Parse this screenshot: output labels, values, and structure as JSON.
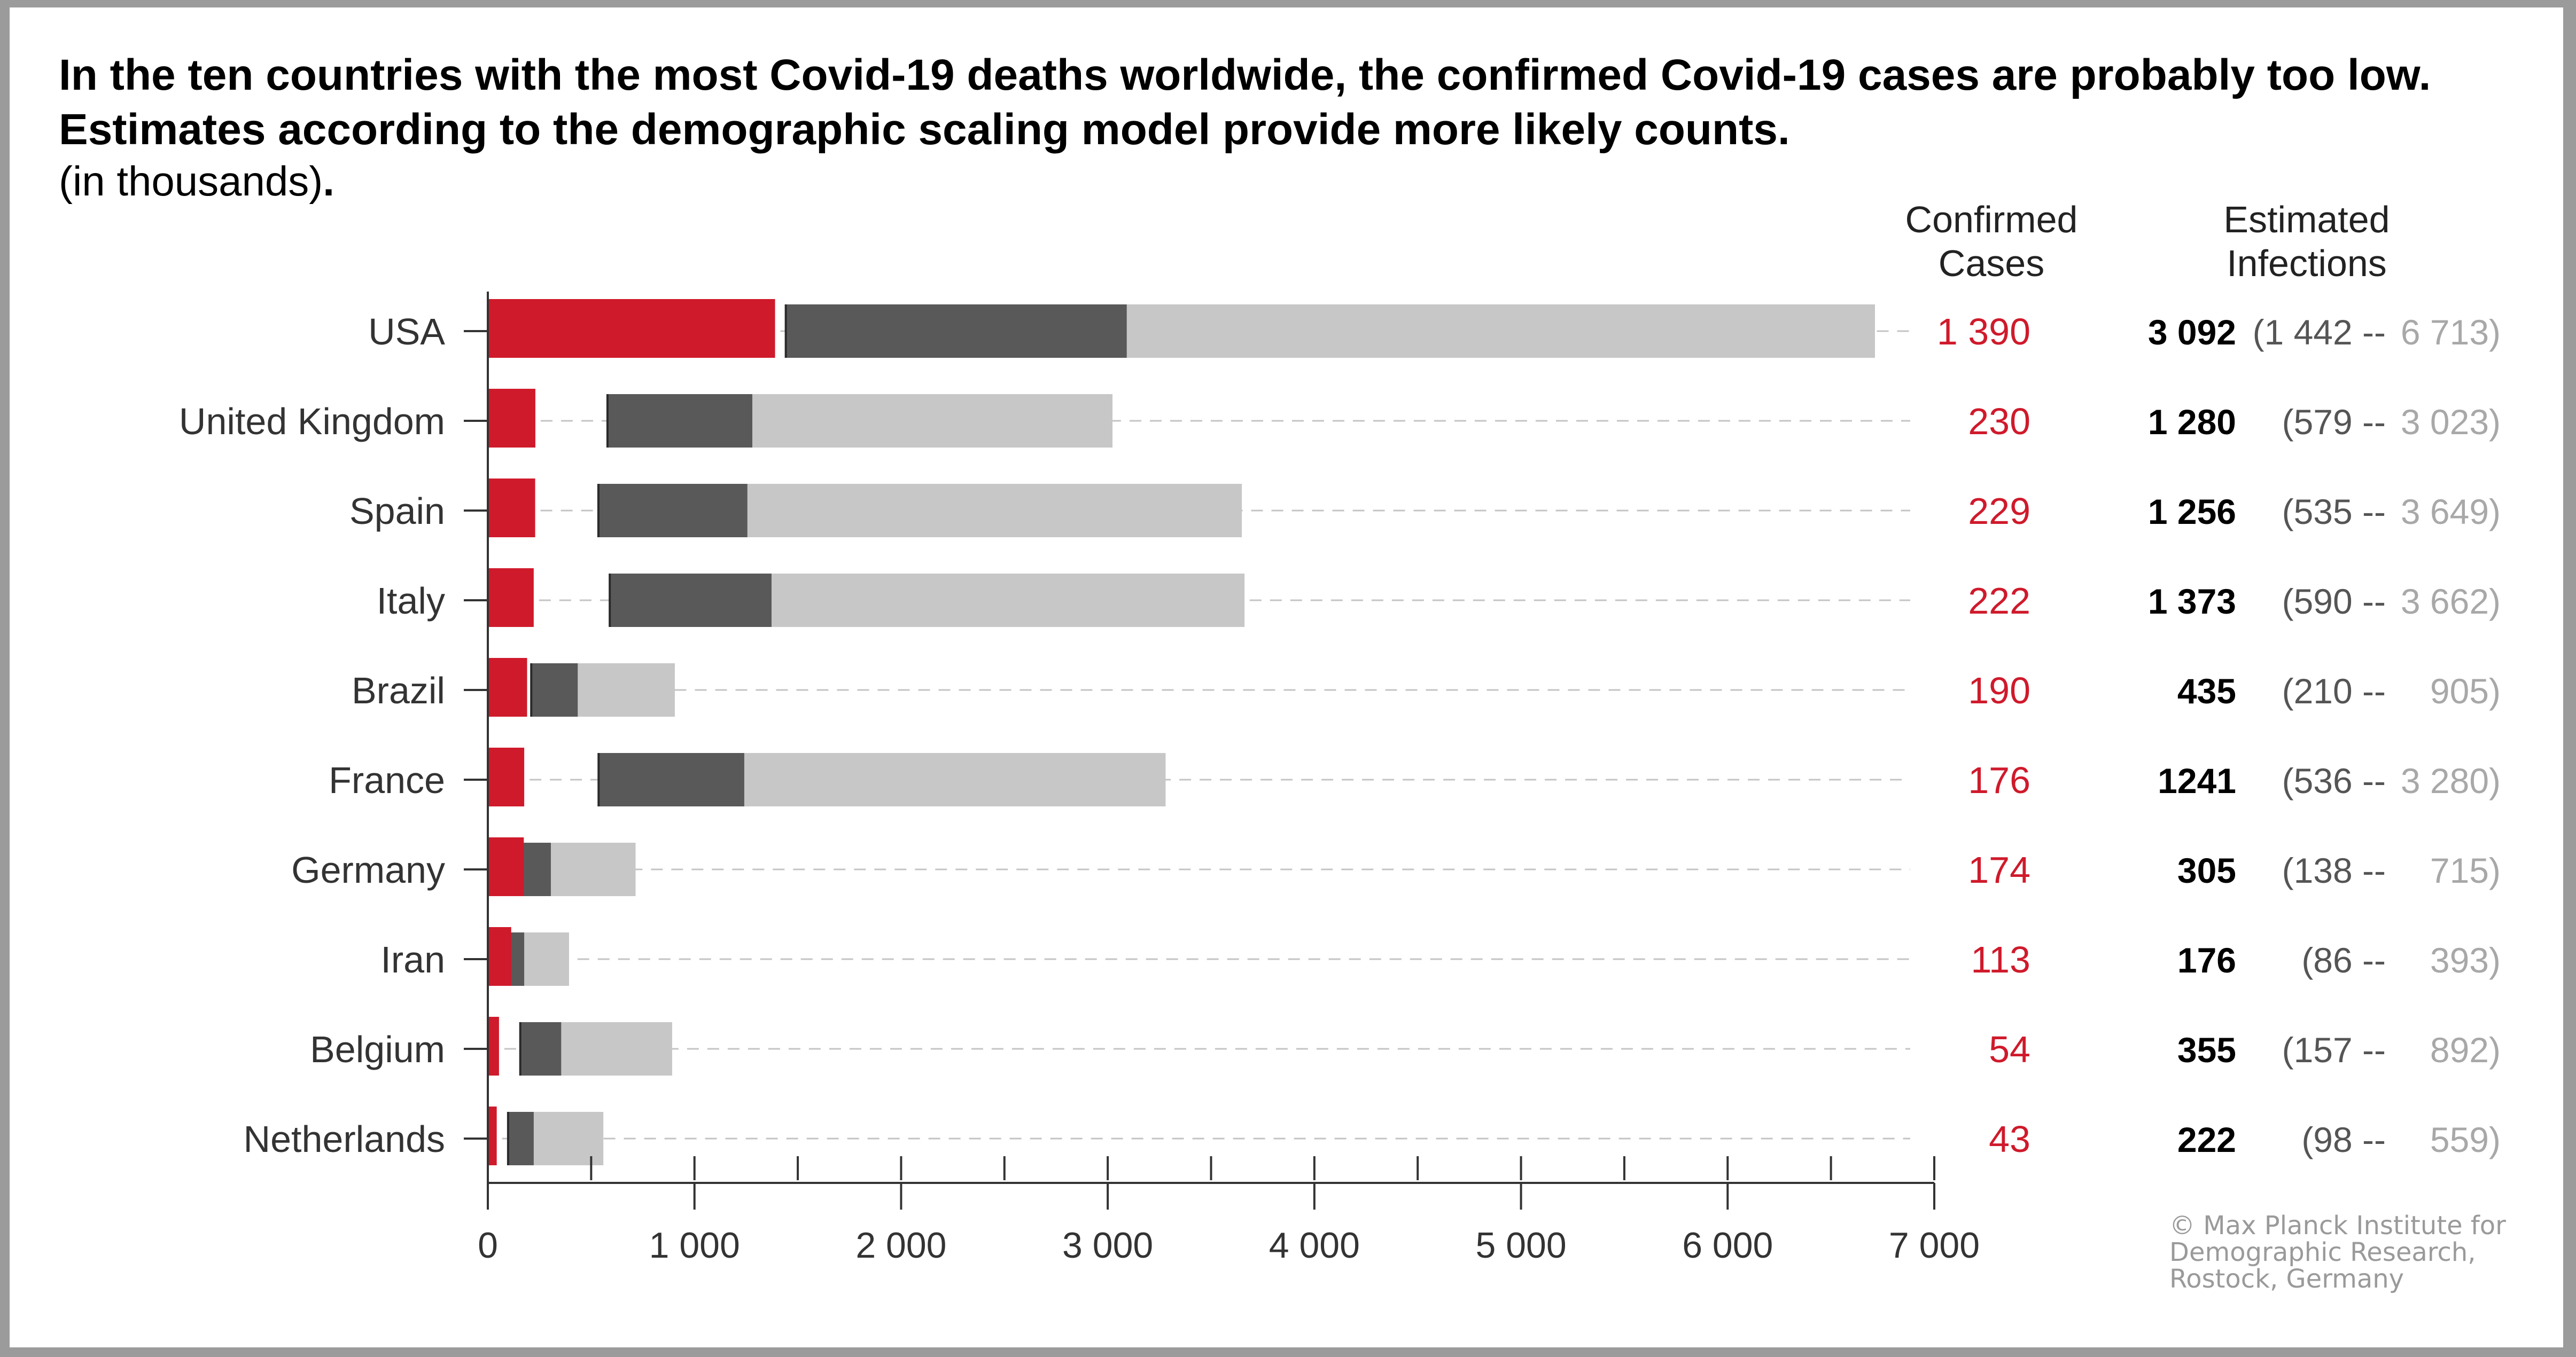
{
  "title": "In the ten countries with the most Covid-19 deaths worldwide, the confirmed Covid-19 cases are probably too low. Estimates according to the demographic scaling model provide more likely counts.",
  "subtitle_text": "(in thousands)",
  "subtitle_dot": ".",
  "column_headers": {
    "confirmed": [
      "Confirmed",
      "Cases"
    ],
    "estimated": [
      "Estimated",
      "Infections"
    ]
  },
  "credit": [
    "© Max Planck Institute for",
    "Demographic Research,",
    "Rostock, Germany"
  ],
  "colors": {
    "confirmed": "#cf1a2b",
    "estimate_low": "#595959",
    "estimate_high": "#c6c7c6",
    "text_confirmed": "#cf1a2b",
    "text_range_high": "#a8a8a8"
  },
  "chart_data": {
    "type": "bar",
    "orientation": "horizontal",
    "xlim": [
      0,
      7000
    ],
    "x_ticks": [
      0,
      1000,
      2000,
      3000,
      4000,
      5000,
      6000,
      7000
    ],
    "x_tick_labels": [
      "0",
      "1 000",
      "2 000",
      "3 000",
      "4 000",
      "5 000",
      "6 000",
      "7 000"
    ],
    "categories": [
      "USA",
      "United Kingdom",
      "Spain",
      "Italy",
      "Brazil",
      "France",
      "Germany",
      "Iran",
      "Belgium",
      "Netherlands"
    ],
    "confirmed": [
      1390,
      230,
      229,
      222,
      190,
      176,
      174,
      113,
      54,
      43
    ],
    "estimated": [
      3092,
      1280,
      1256,
      1373,
      435,
      1241,
      305,
      176,
      355,
      222
    ],
    "range_low": [
      1442,
      579,
      535,
      590,
      210,
      536,
      138,
      86,
      157,
      98
    ],
    "range_high": [
      6713,
      3023,
      3649,
      3662,
      905,
      3280,
      715,
      393,
      892,
      559
    ],
    "confirmed_labels": [
      "1 390",
      "230",
      "229",
      "222",
      "190",
      "176",
      "174",
      "113",
      "54",
      "43"
    ],
    "estimated_labels": [
      "3 092",
      "1 280",
      "1 256",
      "1 373",
      "435",
      "1241",
      "305",
      "176",
      "355",
      "222"
    ],
    "range_low_labels": [
      "(1 442 --",
      "(579 --",
      "(535 --",
      "(590 --",
      "(210 --",
      "(536 --",
      "(138 --",
      "(86 --",
      "(157 --",
      "(98 --"
    ],
    "range_high_labels": [
      "6 713)",
      "3 023)",
      "3 649)",
      "3 662)",
      "905)",
      "3 280)",
      "715)",
      "393)",
      "892)",
      "559)"
    ]
  }
}
